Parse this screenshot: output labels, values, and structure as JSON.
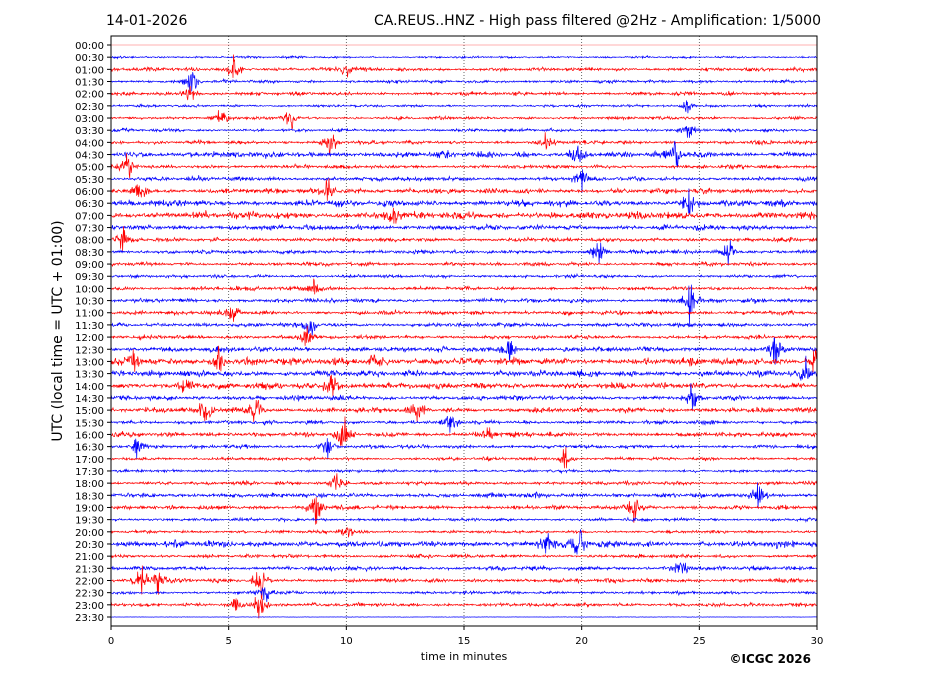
{
  "chart_data": {
    "type": "line",
    "date": "14-01-2026",
    "title": "CA.REUS..HNZ - High pass filtered @2Hz - Amplification: 1/5000",
    "xlabel": "time in minutes",
    "ylabel": "UTC (local time = UTC + 01:00)",
    "xlim": [
      0,
      30
    ],
    "xticks": [
      "0",
      "5",
      "10",
      "15",
      "20",
      "25",
      "30"
    ],
    "xtick_values": [
      0,
      5,
      10,
      15,
      20,
      25,
      30
    ],
    "grid": "vertical dotted",
    "colors": {
      "even": "#ff0000",
      "odd": "#0000ff"
    },
    "rows": [
      "00:00",
      "00:30",
      "01:00",
      "01:30",
      "02:00",
      "02:30",
      "03:00",
      "03:30",
      "04:00",
      "04:30",
      "05:00",
      "05:30",
      "06:00",
      "06:30",
      "07:00",
      "07:30",
      "08:00",
      "08:30",
      "09:00",
      "09:30",
      "10:00",
      "10:30",
      "11:00",
      "11:30",
      "12:00",
      "12:30",
      "13:00",
      "13:30",
      "14:00",
      "14:30",
      "15:00",
      "15:30",
      "16:00",
      "16:30",
      "17:00",
      "17:30",
      "18:00",
      "18:30",
      "19:00",
      "19:30",
      "20:00",
      "20:30",
      "21:00",
      "21:30",
      "22:00",
      "22:30",
      "23:00",
      "23:30"
    ],
    "noise_level": [
      0,
      0.2,
      0.35,
      0.3,
      0.35,
      0.25,
      0.3,
      0.3,
      0.35,
      0.6,
      0.35,
      0.4,
      0.5,
      0.6,
      0.7,
      0.5,
      0.4,
      0.4,
      0.35,
      0.3,
      0.35,
      0.4,
      0.4,
      0.4,
      0.35,
      0.5,
      0.7,
      0.6,
      0.6,
      0.45,
      0.5,
      0.4,
      0.45,
      0.35,
      0.3,
      0.25,
      0.35,
      0.45,
      0.4,
      0.3,
      0.3,
      0.6,
      0.35,
      0.4,
      0.4,
      0.3,
      0.35,
      0.05
    ],
    "events": [
      [
        2,
        5.2,
        0.8
      ],
      [
        2,
        10,
        0.8
      ],
      [
        3,
        3.4,
        1
      ],
      [
        4,
        3.4,
        0.9
      ],
      [
        5,
        24.5,
        0.6
      ],
      [
        6,
        4.6,
        0.8
      ],
      [
        6,
        7.6,
        0.8
      ],
      [
        7,
        24.5,
        0.6
      ],
      [
        8,
        9.3,
        0.9
      ],
      [
        8,
        18.5,
        0.6
      ],
      [
        9,
        19.8,
        1
      ],
      [
        9,
        24,
        1
      ],
      [
        10,
        0.7,
        0.8
      ],
      [
        11,
        20,
        0.8
      ],
      [
        12,
        1.2,
        0.7
      ],
      [
        12,
        9.2,
        0.7
      ],
      [
        13,
        24.5,
        0.8
      ],
      [
        14,
        12,
        0.7
      ],
      [
        16,
        0.5,
        0.7
      ],
      [
        17,
        20.7,
        0.8
      ],
      [
        17,
        26.3,
        0.7
      ],
      [
        20,
        8.6,
        0.6
      ],
      [
        21,
        24.6,
        1.6
      ],
      [
        22,
        5.2,
        0.7
      ],
      [
        23,
        8.5,
        0.9
      ],
      [
        24,
        8.3,
        0.9
      ],
      [
        25,
        16.9,
        0.8
      ],
      [
        25,
        28.2,
        1
      ],
      [
        26,
        1,
        0.8
      ],
      [
        26,
        4.6,
        0.9
      ],
      [
        26,
        11.3,
        0.8
      ],
      [
        26,
        30,
        1.5
      ],
      [
        27,
        29.5,
        0.9
      ],
      [
        28,
        3.2,
        0.9
      ],
      [
        28,
        9.4,
        1
      ],
      [
        29,
        24.7,
        0.7
      ],
      [
        30,
        4,
        0.8
      ],
      [
        30,
        6.1,
        1.1
      ],
      [
        30,
        13,
        0.8
      ],
      [
        31,
        14.4,
        0.7
      ],
      [
        32,
        9.9,
        1.2
      ],
      [
        32,
        16,
        0.6
      ],
      [
        33,
        1.1,
        0.7
      ],
      [
        33,
        9.2,
        0.9
      ],
      [
        34,
        19.3,
        0.7
      ],
      [
        36,
        9.6,
        0.8
      ],
      [
        37,
        27.5,
        1
      ],
      [
        38,
        8.7,
        1.2
      ],
      [
        38,
        22.2,
        1
      ],
      [
        40,
        10,
        0.5
      ],
      [
        41,
        19.9,
        1.2
      ],
      [
        41,
        18.5,
        0.8
      ],
      [
        43,
        24.2,
        0.8
      ],
      [
        44,
        1.3,
        1
      ],
      [
        44,
        2,
        0.9
      ],
      [
        44,
        6.4,
        1
      ],
      [
        45,
        6.6,
        0.8
      ],
      [
        46,
        6.3,
        1.2
      ],
      [
        46,
        5.3,
        0.7
      ]
    ]
  },
  "footer": {
    "copyright": "©ICGC 2026"
  }
}
